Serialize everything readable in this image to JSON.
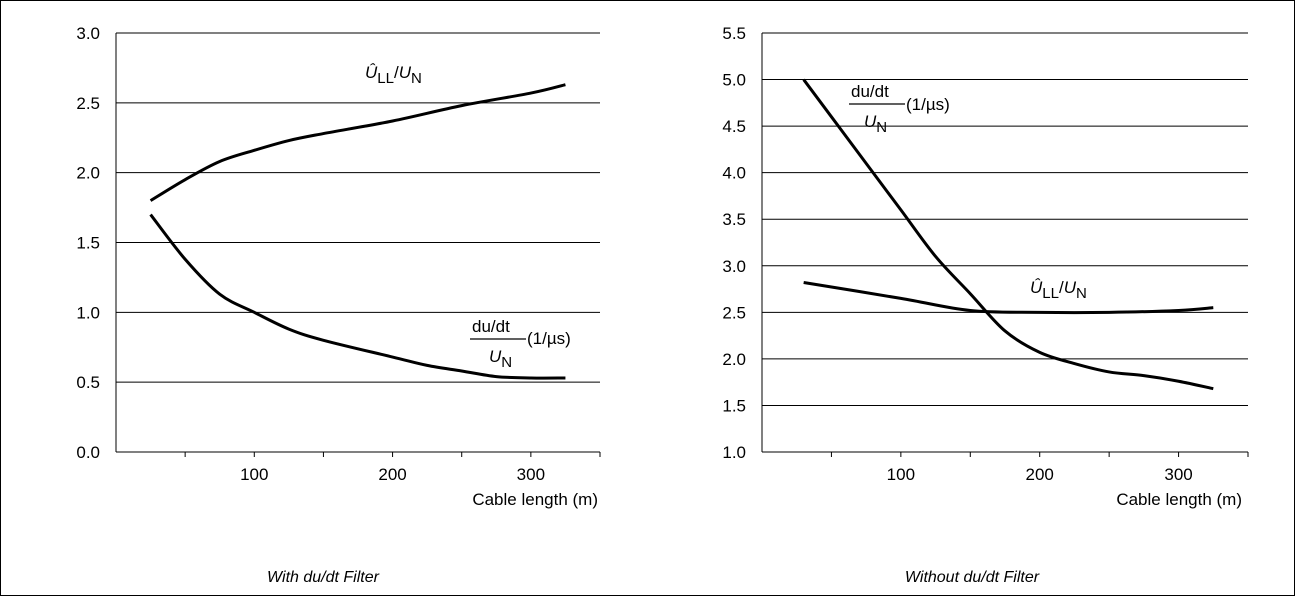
{
  "chart_data": [
    {
      "type": "line",
      "xlabel": "Cable length (m)",
      "caption": "With du/dt Filter",
      "xlim": [
        0,
        350
      ],
      "ylim": [
        0.0,
        3.0
      ],
      "xticks": [
        100,
        200,
        300
      ],
      "xtick_labels": [
        "100",
        "200",
        "300"
      ],
      "yticks": [
        0.0,
        0.5,
        1.0,
        1.5,
        2.0,
        2.5,
        3.0
      ],
      "ytick_labels": [
        "0.0",
        "0.5",
        "1.0",
        "1.5",
        "2.0",
        "2.5",
        "3.0"
      ],
      "grid": "horizontal",
      "series": [
        {
          "label_main": "Û",
          "label_sub": "LL",
          "label_den": "U",
          "label_den_sub": "N",
          "points": [
            [
              25,
              1.8
            ],
            [
              50,
              1.95
            ],
            [
              75,
              2.08
            ],
            [
              100,
              2.16
            ],
            [
              125,
              2.23
            ],
            [
              150,
              2.28
            ],
            [
              200,
              2.37
            ],
            [
              250,
              2.48
            ],
            [
              300,
              2.57
            ],
            [
              325,
              2.63
            ]
          ]
        },
        {
          "label_num": "du/dt",
          "label_den": "U",
          "label_den_sub": "N",
          "label_unit": "(1/µs)",
          "points": [
            [
              25,
              1.7
            ],
            [
              50,
              1.38
            ],
            [
              75,
              1.13
            ],
            [
              100,
              1.0
            ],
            [
              125,
              0.88
            ],
            [
              150,
              0.8
            ],
            [
              200,
              0.68
            ],
            [
              225,
              0.62
            ],
            [
              250,
              0.58
            ],
            [
              275,
              0.54
            ],
            [
              300,
              0.53
            ],
            [
              325,
              0.53
            ]
          ]
        }
      ]
    },
    {
      "type": "line",
      "xlabel": "Cable length (m)",
      "caption": "Without du/dt Filter",
      "xlim": [
        0,
        350
      ],
      "ylim": [
        1.0,
        5.5
      ],
      "xticks": [
        100,
        200,
        300
      ],
      "xtick_labels": [
        "100",
        "200",
        "300"
      ],
      "yticks": [
        1.0,
        1.5,
        2.0,
        2.5,
        3.0,
        3.5,
        4.0,
        4.5,
        5.0,
        5.5
      ],
      "ytick_labels": [
        "1.0",
        "1.5",
        "2.0",
        "2.5",
        "3.0",
        "3.5",
        "4.0",
        "4.5",
        "5.0",
        "5.5"
      ],
      "grid": "horizontal",
      "series": [
        {
          "label_num": "du/dt",
          "label_den": "U",
          "label_den_sub": "N",
          "label_unit": "(1/µs)",
          "points": [
            [
              30,
              5.0
            ],
            [
              50,
              4.6
            ],
            [
              75,
              4.1
            ],
            [
              100,
              3.6
            ],
            [
              125,
              3.1
            ],
            [
              150,
              2.7
            ],
            [
              175,
              2.3
            ],
            [
              200,
              2.07
            ],
            [
              225,
              1.95
            ],
            [
              250,
              1.86
            ],
            [
              275,
              1.82
            ],
            [
              300,
              1.76
            ],
            [
              325,
              1.68
            ]
          ]
        },
        {
          "label_main": "Û",
          "label_sub": "LL",
          "label_den": "U",
          "label_den_sub": "N",
          "points": [
            [
              30,
              2.82
            ],
            [
              100,
              2.65
            ],
            [
              150,
              2.52
            ],
            [
              200,
              2.5
            ],
            [
              250,
              2.5
            ],
            [
              300,
              2.52
            ],
            [
              325,
              2.55
            ]
          ]
        }
      ]
    }
  ]
}
